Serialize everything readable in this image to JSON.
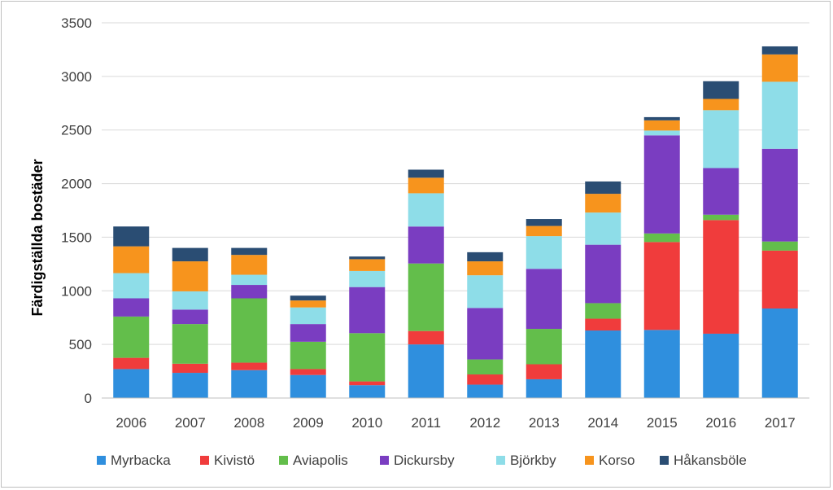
{
  "chart_data": {
    "type": "bar",
    "stacked": true,
    "title": "",
    "xlabel": "",
    "ylabel": "Färdigställda bostäder",
    "ylim": [
      0,
      3500
    ],
    "yticks": [
      "0",
      "500",
      "1000",
      "1500",
      "2000",
      "2500",
      "3000",
      "3500"
    ],
    "grid": true,
    "legend_position": "bottom",
    "categories": [
      "2006",
      "2007",
      "2008",
      "2009",
      "2010",
      "2011",
      "2012",
      "2013",
      "2014",
      "2015",
      "2016",
      "2017"
    ],
    "series": [
      {
        "name": "Myrbacka",
        "color": "#2f8fde",
        "values": [
          270,
          235,
          260,
          215,
          120,
          500,
          125,
          175,
          630,
          635,
          600,
          835
        ]
      },
      {
        "name": "Kivistö",
        "color": "#f03c3c",
        "values": [
          105,
          85,
          70,
          55,
          35,
          125,
          95,
          140,
          110,
          820,
          1060,
          540
        ]
      },
      {
        "name": "Aviapolis",
        "color": "#63be4b",
        "values": [
          385,
          370,
          600,
          255,
          450,
          630,
          140,
          330,
          145,
          80,
          50,
          85
        ]
      },
      {
        "name": "Dickursby",
        "color": "#7a3dc1",
        "values": [
          170,
          135,
          125,
          165,
          430,
          345,
          480,
          560,
          545,
          915,
          435,
          865
        ]
      },
      {
        "name": "Björkby",
        "color": "#8edde8",
        "values": [
          235,
          170,
          95,
          155,
          150,
          310,
          305,
          305,
          300,
          45,
          540,
          625
        ]
      },
      {
        "name": "Korso",
        "color": "#f7941d",
        "values": [
          250,
          280,
          185,
          65,
          110,
          145,
          130,
          95,
          175,
          95,
          105,
          255
        ]
      },
      {
        "name": "Håkansböle",
        "color": "#2a4d73",
        "values": [
          185,
          125,
          65,
          45,
          25,
          75,
          85,
          65,
          115,
          30,
          165,
          75
        ]
      }
    ]
  }
}
